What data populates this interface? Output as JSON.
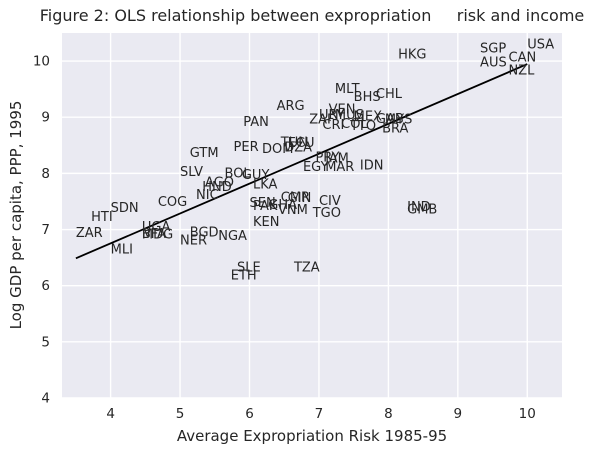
{
  "chart_data": {
    "type": "scatter",
    "title": "Figure 2: OLS relationship between expropriation     risk and income",
    "xlabel": "Average Expropriation Risk 1985-95",
    "ylabel": "Log GDP per capita, PPP, 1995",
    "xlim": [
      3.3,
      10.5
    ],
    "ylim": [
      4,
      10.5
    ],
    "xticks": [
      4,
      5,
      6,
      7,
      8,
      9,
      10
    ],
    "yticks": [
      4,
      5,
      6,
      7,
      8,
      9,
      10
    ],
    "grid": true,
    "legend": "none",
    "marker_style": "country-code text labels, no marker dots",
    "points": [
      {
        "label": "ZAR",
        "x": 3.5,
        "y": 6.87
      },
      {
        "label": "HTI",
        "x": 3.72,
        "y": 7.15
      },
      {
        "label": "SDN",
        "x": 4.0,
        "y": 7.31
      },
      {
        "label": "MLI",
        "x": 4.0,
        "y": 6.57
      },
      {
        "label": "UGA",
        "x": 4.45,
        "y": 6.97
      },
      {
        "label": "BFA",
        "x": 4.45,
        "y": 6.85
      },
      {
        "label": "MDG",
        "x": 4.45,
        "y": 6.84
      },
      {
        "label": "NER",
        "x": 5.0,
        "y": 6.73
      },
      {
        "label": "BGD",
        "x": 5.14,
        "y": 6.88
      },
      {
        "label": "NGA",
        "x": 5.55,
        "y": 6.81
      },
      {
        "label": "COG",
        "x": 4.68,
        "y": 7.42
      },
      {
        "label": "NIC",
        "x": 5.23,
        "y": 7.54
      },
      {
        "label": "SLV",
        "x": 5.0,
        "y": 7.95
      },
      {
        "label": "GTM",
        "x": 5.14,
        "y": 8.29
      },
      {
        "label": "HND",
        "x": 5.32,
        "y": 7.69
      },
      {
        "label": "AGO",
        "x": 5.36,
        "y": 7.77
      },
      {
        "label": "BOL",
        "x": 5.64,
        "y": 7.93
      },
      {
        "label": "GUY",
        "x": 5.89,
        "y": 7.9
      },
      {
        "label": "PER",
        "x": 5.77,
        "y": 8.4
      },
      {
        "label": "DOM",
        "x": 6.18,
        "y": 8.36
      },
      {
        "label": "PAN",
        "x": 5.91,
        "y": 8.84
      },
      {
        "label": "LKA",
        "x": 6.05,
        "y": 7.73
      },
      {
        "label": "KEN",
        "x": 6.05,
        "y": 7.06
      },
      {
        "label": "PAK",
        "x": 6.05,
        "y": 7.35
      },
      {
        "label": "SEN",
        "x": 6.0,
        "y": 7.4
      },
      {
        "label": "GHA",
        "x": 6.27,
        "y": 7.37
      },
      {
        "label": "CMR",
        "x": 6.45,
        "y": 7.5
      },
      {
        "label": "GIN",
        "x": 6.55,
        "y": 7.49
      },
      {
        "label": "VNM",
        "x": 6.41,
        "y": 7.28
      },
      {
        "label": "CIV",
        "x": 7.0,
        "y": 7.44
      },
      {
        "label": "TGO",
        "x": 6.91,
        "y": 7.22
      },
      {
        "label": "SLE",
        "x": 5.82,
        "y": 6.25
      },
      {
        "label": "ETH",
        "x": 5.73,
        "y": 6.11
      },
      {
        "label": "TZA",
        "x": 6.64,
        "y": 6.25
      },
      {
        "label": "DZA",
        "x": 6.5,
        "y": 8.39
      },
      {
        "label": "TUN",
        "x": 6.45,
        "y": 8.48
      },
      {
        "label": "ECU",
        "x": 6.55,
        "y": 8.47
      },
      {
        "label": "EGY",
        "x": 6.77,
        "y": 8.04
      },
      {
        "label": "MAR",
        "x": 7.09,
        "y": 8.04
      },
      {
        "label": "PRY",
        "x": 6.95,
        "y": 8.21
      },
      {
        "label": "JAM",
        "x": 7.09,
        "y": 8.19
      },
      {
        "label": "IDN",
        "x": 7.59,
        "y": 8.07
      },
      {
        "label": "ARG",
        "x": 6.39,
        "y": 9.13
      },
      {
        "label": "URY",
        "x": 7.0,
        "y": 8.97
      },
      {
        "label": "VEN",
        "x": 7.14,
        "y": 9.07
      },
      {
        "label": "MUS",
        "x": 7.23,
        "y": 8.97
      },
      {
        "label": "MEX",
        "x": 7.5,
        "y": 8.94
      },
      {
        "label": "ZAF",
        "x": 6.86,
        "y": 8.89
      },
      {
        "label": "CRI",
        "x": 7.05,
        "y": 8.79
      },
      {
        "label": "COL",
        "x": 7.32,
        "y": 8.81
      },
      {
        "label": "TTO",
        "x": 7.45,
        "y": 8.77
      },
      {
        "label": "BRA",
        "x": 7.91,
        "y": 8.73
      },
      {
        "label": "GAB",
        "x": 7.82,
        "y": 8.9
      },
      {
        "label": "MYS",
        "x": 7.95,
        "y": 8.89
      },
      {
        "label": "MLT",
        "x": 7.23,
        "y": 9.43
      },
      {
        "label": "BHS",
        "x": 7.5,
        "y": 9.29
      },
      {
        "label": "CHL",
        "x": 7.82,
        "y": 9.34
      },
      {
        "label": "IND",
        "x": 8.27,
        "y": 7.33
      },
      {
        "label": "GMB",
        "x": 8.27,
        "y": 7.29
      },
      {
        "label": "HKG",
        "x": 8.14,
        "y": 10.05
      },
      {
        "label": "SGP",
        "x": 9.32,
        "y": 10.15
      },
      {
        "label": "AUS",
        "x": 9.32,
        "y": 9.9
      },
      {
        "label": "NZL",
        "x": 9.73,
        "y": 9.76
      },
      {
        "label": "CAN",
        "x": 9.73,
        "y": 9.99
      },
      {
        "label": "USA",
        "x": 10.0,
        "y": 10.22
      }
    ],
    "trend_line": {
      "type": "ols-fit",
      "intercept": 4.626,
      "slope": 0.532,
      "x_start": 3.5,
      "x_end": 10.0,
      "color": "#000000"
    },
    "colors": {
      "axes_background": "#eaeaf2",
      "gridline": "#ffffff",
      "text": "#262626",
      "trend_line": "#000000"
    }
  }
}
